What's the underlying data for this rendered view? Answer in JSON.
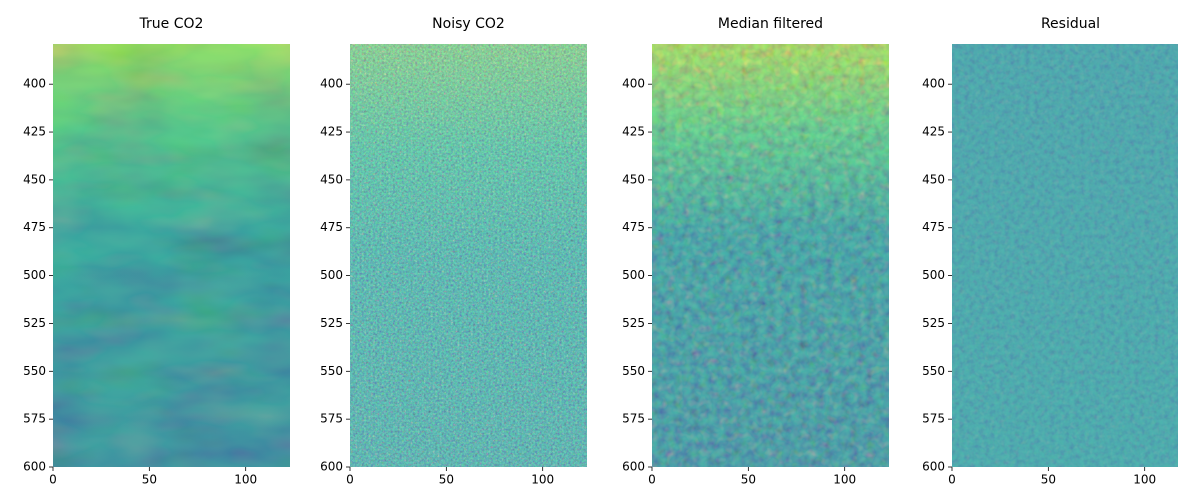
{
  "chart_data": [
    {
      "type": "image",
      "title": "True CO2",
      "xlim": [
        0,
        123
      ],
      "ylim": [
        600,
        379
      ],
      "xticks": [
        0,
        50,
        100
      ],
      "yticks": [
        400,
        425,
        450,
        475,
        500,
        525,
        550,
        575,
        600
      ]
    },
    {
      "type": "image",
      "title": "Noisy CO2",
      "xlim": [
        0,
        123
      ],
      "ylim": [
        600,
        379
      ],
      "xticks": [
        0,
        50,
        100
      ],
      "yticks": [
        400,
        425,
        450,
        475,
        500,
        525,
        550,
        575,
        600
      ]
    },
    {
      "type": "image",
      "title": "Median filtered",
      "xlim": [
        0,
        123
      ],
      "ylim": [
        600,
        379
      ],
      "xticks": [
        0,
        50,
        100
      ],
      "yticks": [
        400,
        425,
        450,
        475,
        500,
        525,
        550,
        575,
        600
      ]
    },
    {
      "type": "image",
      "title": "Residual",
      "xlim": [
        0,
        123
      ],
      "ylim": [
        600,
        379
      ],
      "xticks": [
        0,
        50,
        100
      ],
      "yticks": [
        400,
        425,
        450,
        475,
        500,
        525,
        550,
        575,
        600
      ]
    }
  ]
}
